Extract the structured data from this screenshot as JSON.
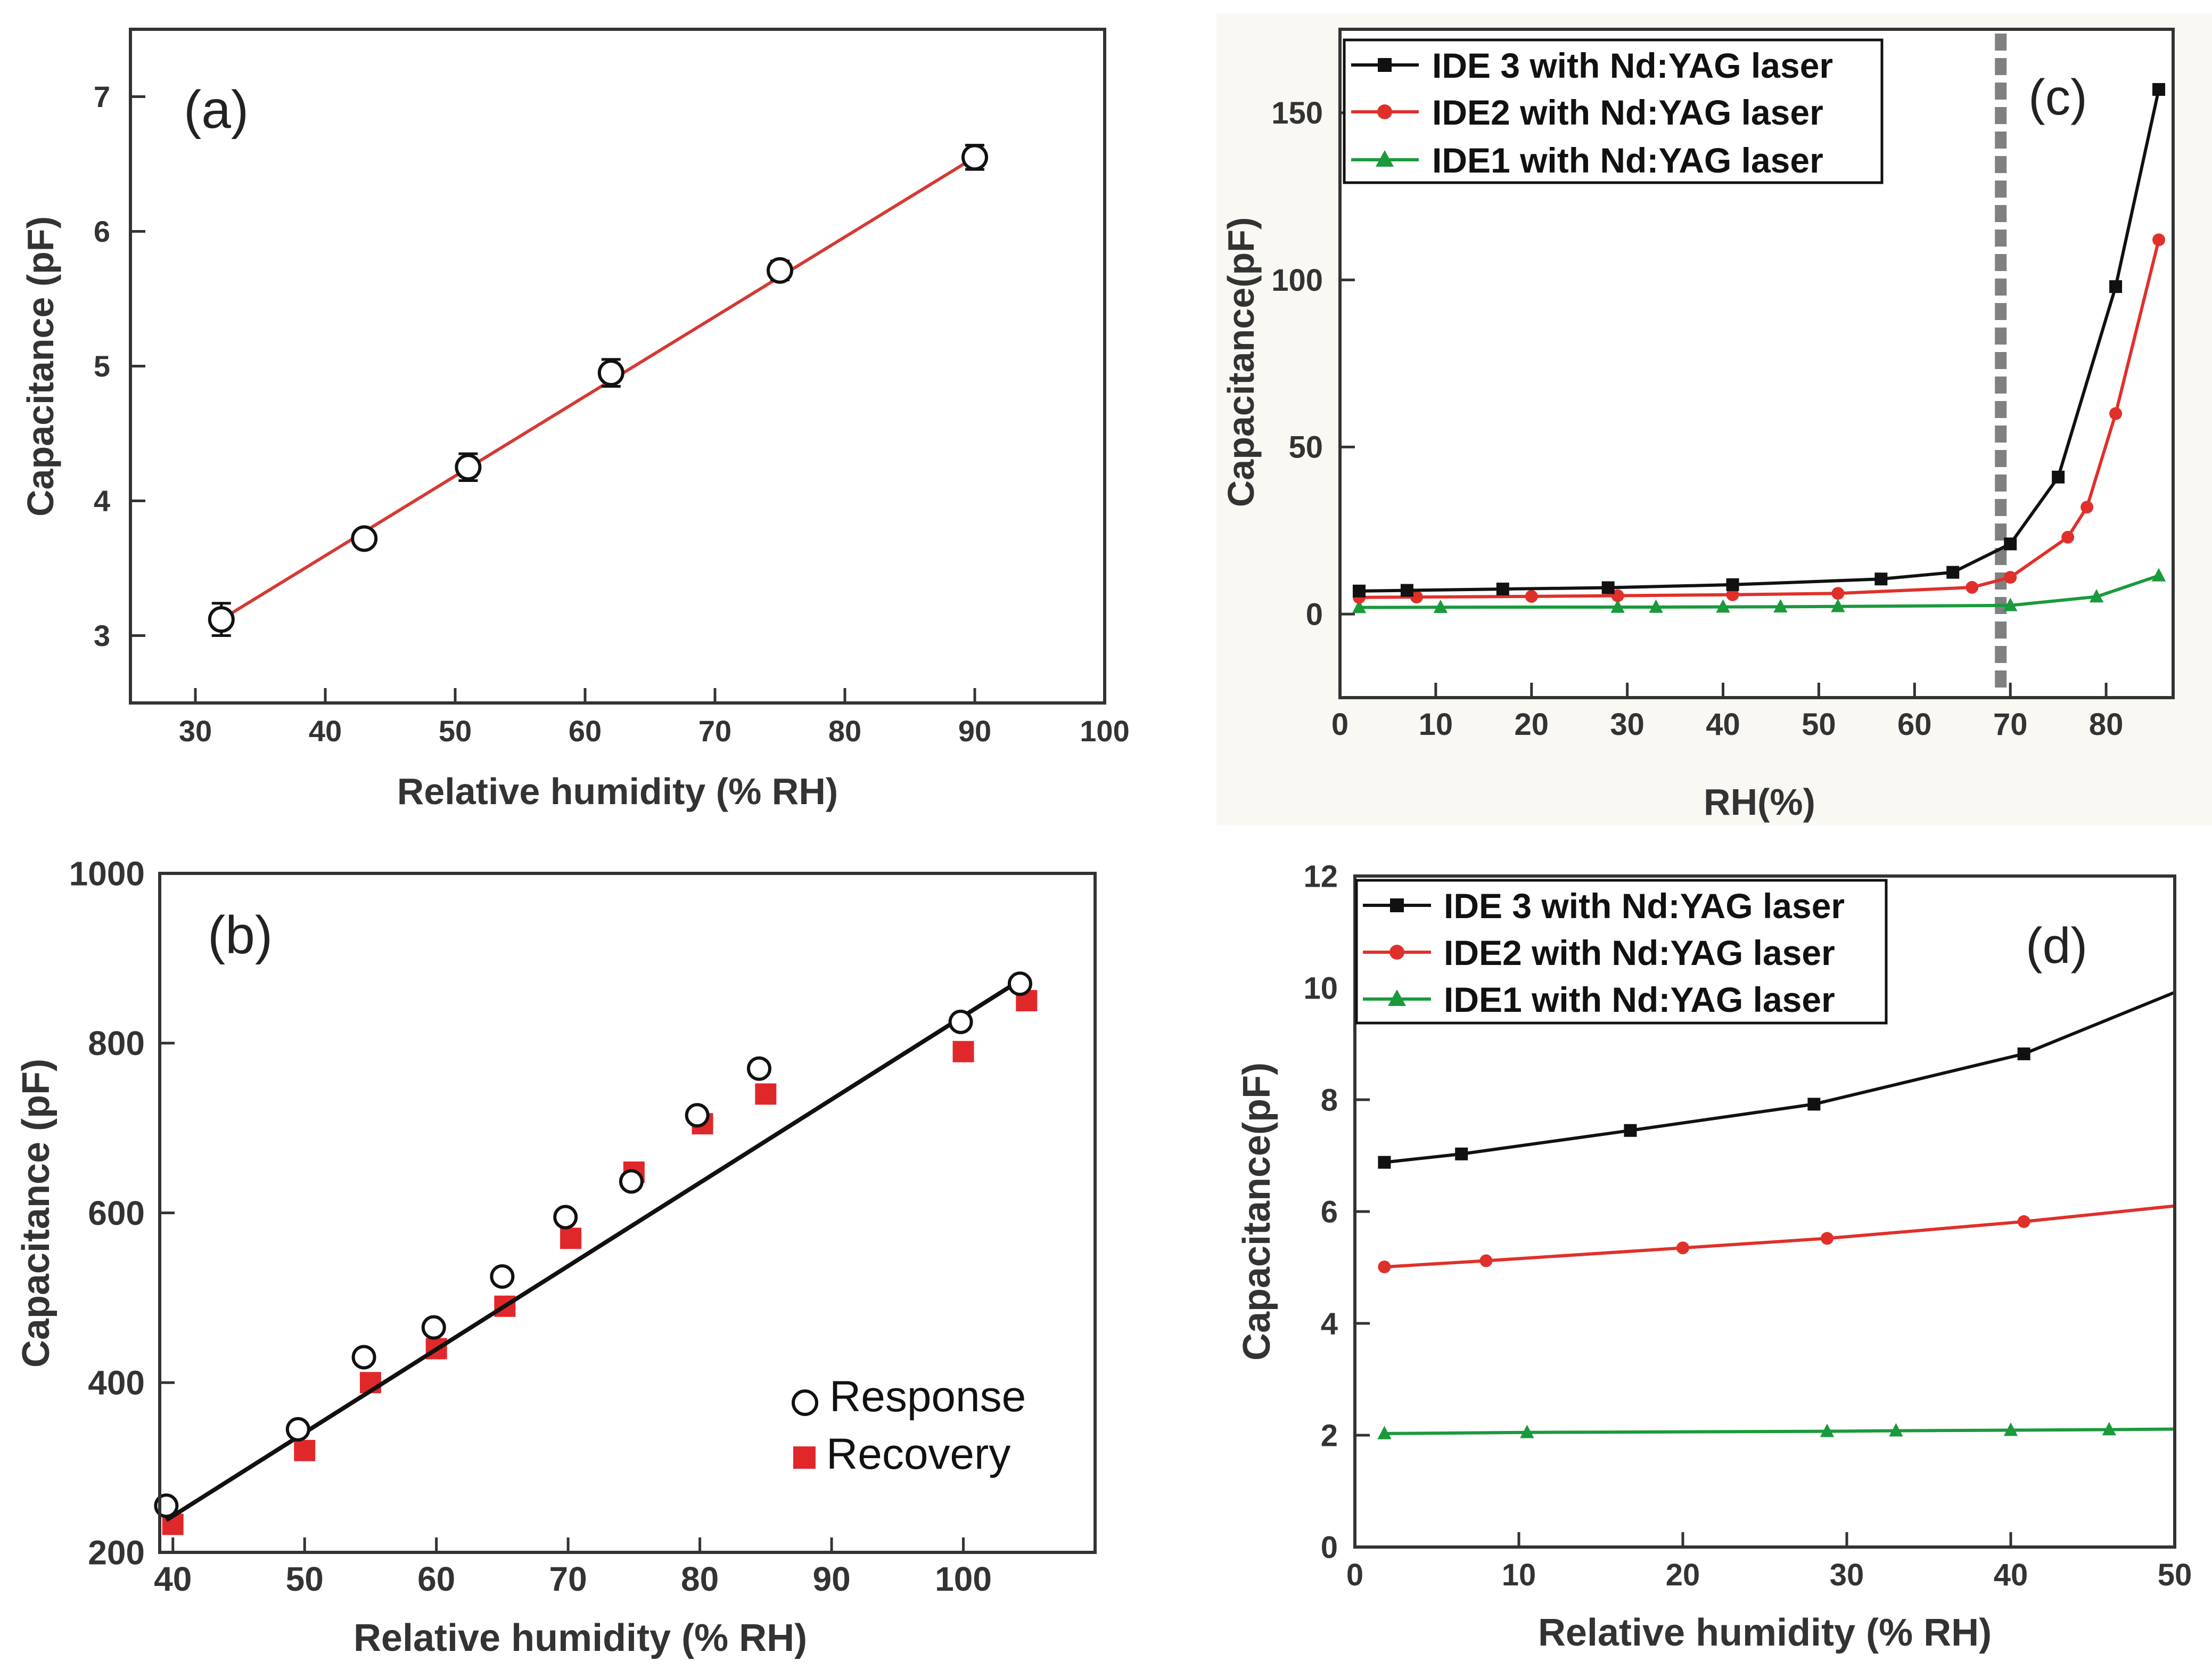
{
  "chart_data": [
    {
      "panel": "(a)",
      "type": "scatter",
      "xlabel": "Relative humidity (% RH)",
      "ylabel": "Capacitance (pF)",
      "xlim": [
        25,
        100
      ],
      "ylim": [
        2.5,
        7.5
      ],
      "xticks": [
        30,
        40,
        50,
        60,
        70,
        80,
        90,
        100
      ],
      "yticks": [
        3,
        4,
        5,
        6,
        7
      ],
      "points": {
        "x": [
          32,
          43,
          51,
          62,
          75,
          90
        ],
        "y": [
          3.12,
          3.72,
          4.25,
          4.95,
          5.71,
          6.55
        ],
        "err": [
          0.12,
          0.05,
          0.1,
          0.1,
          0.07,
          0.09
        ]
      },
      "fit": {
        "x": [
          32,
          90
        ],
        "y": [
          3.12,
          6.55
        ]
      },
      "colors": {
        "fit": "#d43a34",
        "marker": "#ffffff",
        "edge": "#111111"
      }
    },
    {
      "panel": "(b)",
      "type": "scatter",
      "xlabel": "Relative humidity (% RH)",
      "ylabel": "Capacitance (pF)",
      "xlim": [
        39,
        110
      ],
      "ylim": [
        200,
        1000
      ],
      "xticks": [
        40,
        50,
        60,
        70,
        80,
        90,
        100
      ],
      "yticks": [
        200,
        400,
        600,
        800,
        1000
      ],
      "series": [
        {
          "name": "Response",
          "x": [
            39.5,
            49.5,
            54.5,
            59.8,
            65,
            69.8,
            74.8,
            79.8,
            84.5,
            99.8,
            104.3
          ],
          "y": [
            255,
            345,
            430,
            465,
            525,
            595,
            637,
            715,
            770,
            825,
            870
          ],
          "color": "#ffffff",
          "edge": "#111111"
        },
        {
          "name": "Recovery",
          "x": [
            40,
            50,
            55,
            60,
            65.2,
            70.2,
            75,
            80.2,
            85,
            100,
            104.8
          ],
          "y": [
            233,
            320,
            400,
            440,
            490,
            570,
            648,
            705,
            740,
            790,
            850
          ],
          "color": "#e0282b"
        }
      ],
      "fit": {
        "x": [
          39.5,
          104.3
        ],
        "y": [
          238,
          874
        ]
      },
      "colors": {
        "fit": "#111111"
      }
    },
    {
      "panel": "(c)",
      "type": "line",
      "xlabel": "RH(%)",
      "ylabel": "Capacitance(pF)",
      "xlim": [
        0,
        87
      ],
      "ylim": [
        -25,
        175
      ],
      "xticks": [
        0,
        10,
        20,
        30,
        40,
        50,
        60,
        70,
        80
      ],
      "yticks": [
        0,
        50,
        100,
        150
      ],
      "threshold_x": 69,
      "series": [
        {
          "name": "IDE 3 with Nd:YAG laser",
          "marker": "square",
          "color": "#111111",
          "x": [
            2,
            7,
            17,
            28,
            41,
            56.5,
            64,
            70,
            75,
            81,
            85.5
          ],
          "y": [
            6.9,
            7.1,
            7.5,
            7.9,
            8.8,
            10.5,
            12.5,
            21,
            41,
            98,
            157
          ]
        },
        {
          "name": "IDE2 with Nd:YAG laser",
          "marker": "circle",
          "color": "#e0302a",
          "x": [
            2,
            8,
            20,
            29,
            41,
            52,
            66,
            70,
            76,
            78,
            81,
            85.5
          ],
          "y": [
            5.0,
            5.1,
            5.3,
            5.5,
            5.8,
            6.2,
            8.0,
            11,
            23,
            32,
            60,
            112
          ]
        },
        {
          "name": "IDE1 with Nd:YAG laser",
          "marker": "triangle",
          "color": "#1a9a3c",
          "x": [
            2,
            10.5,
            29,
            33,
            40,
            46,
            52,
            70,
            79,
            85.5
          ],
          "y": [
            2.0,
            2.05,
            2.1,
            2.1,
            2.15,
            2.2,
            2.3,
            2.6,
            5.2,
            11.5
          ]
        }
      ]
    },
    {
      "panel": "(d)",
      "type": "line",
      "xlabel": "Relative humidity (% RH)",
      "ylabel": "Capacitance(pF)",
      "xlim": [
        0,
        50
      ],
      "ylim": [
        0,
        12
      ],
      "xticks": [
        0,
        10,
        20,
        30,
        40,
        50
      ],
      "yticks": [
        0,
        2,
        4,
        6,
        8,
        10,
        12
      ],
      "series": [
        {
          "name": "IDE 3 with Nd:YAG laser",
          "marker": "square",
          "color": "#111111",
          "x": [
            1.8,
            6.5,
            16.8,
            28,
            40.8
          ],
          "y": [
            6.88,
            7.03,
            7.45,
            7.92,
            8.82
          ],
          "line_end": [
            50,
            9.92
          ]
        },
        {
          "name": "IDE2 with Nd:YAG laser",
          "marker": "circle",
          "color": "#e0302a",
          "x": [
            1.8,
            8,
            20,
            28.8,
            40.8
          ],
          "y": [
            5.01,
            5.12,
            5.35,
            5.52,
            5.82
          ],
          "line_end": [
            50,
            6.1
          ]
        },
        {
          "name": "IDE1 with Nd:YAG laser",
          "marker": "triangle",
          "color": "#1a9a3c",
          "x": [
            1.8,
            10.5,
            28.8,
            33,
            40,
            46
          ],
          "y": [
            2.03,
            2.05,
            2.07,
            2.08,
            2.09,
            2.1
          ],
          "line_end": [
            50,
            2.11
          ]
        }
      ]
    }
  ]
}
